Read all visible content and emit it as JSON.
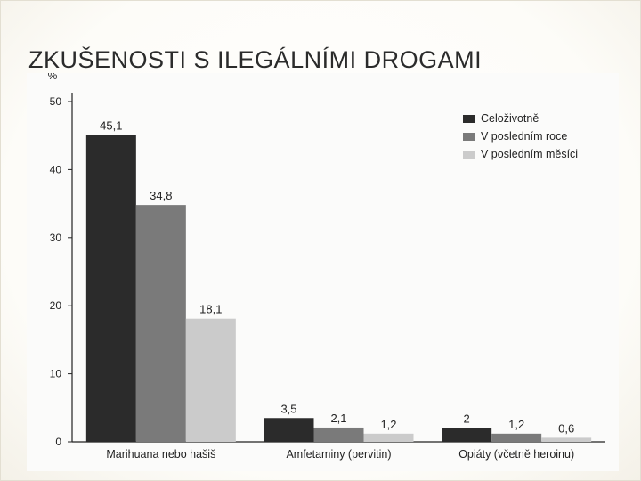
{
  "slide": {
    "title": "ZKUŠENOSTI S ILEGÁLNÍMI DROGAMI"
  },
  "colors": {
    "series_1": "#2b2b2b",
    "series_2": "#7a7a7a",
    "series_3": "#cbcbcb",
    "axis": "#222222"
  },
  "chart_data": {
    "type": "bar",
    "title": "",
    "ylabel": "%",
    "xlabel": "",
    "ylim": [
      0,
      50
    ],
    "yticks": [
      0,
      10,
      20,
      30,
      40,
      50
    ],
    "grid": false,
    "legend_position": "top-right",
    "categories": [
      "Marihuana nebo hašiš",
      "Amfetaminy (pervitin)",
      "Opiáty (včetně heroinu)"
    ],
    "series": [
      {
        "name": "Celoživotně",
        "values": [
          45.1,
          3.5,
          2
        ],
        "labels": [
          "45,1",
          "3,5",
          "2"
        ]
      },
      {
        "name": "V posledním roce",
        "values": [
          34.8,
          2.1,
          1.2
        ],
        "labels": [
          "34,8",
          "2,1",
          "1,2"
        ]
      },
      {
        "name": "V posledním měsíci",
        "values": [
          18.1,
          1.2,
          0.6
        ],
        "labels": [
          "18,1",
          "1,2",
          "0,6"
        ]
      }
    ]
  }
}
